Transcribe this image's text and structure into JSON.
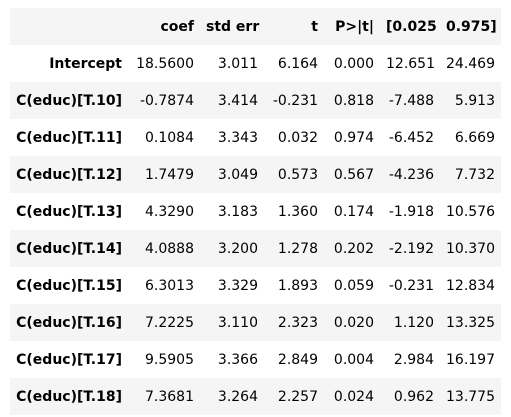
{
  "table": {
    "columns": [
      "coef",
      "std err",
      "t",
      "P>|t|",
      "[0.025",
      "0.975]"
    ],
    "rows": [
      {
        "label": "Intercept",
        "cells": [
          "18.5600",
          "3.011",
          "6.164",
          "0.000",
          "12.651",
          "24.469"
        ]
      },
      {
        "label": "C(educ)[T.10]",
        "cells": [
          "-0.7874",
          "3.414",
          "-0.231",
          "0.818",
          "-7.488",
          "5.913"
        ]
      },
      {
        "label": "C(educ)[T.11]",
        "cells": [
          "0.1084",
          "3.343",
          "0.032",
          "0.974",
          "-6.452",
          "6.669"
        ]
      },
      {
        "label": "C(educ)[T.12]",
        "cells": [
          "1.7479",
          "3.049",
          "0.573",
          "0.567",
          "-4.236",
          "7.732"
        ]
      },
      {
        "label": "C(educ)[T.13]",
        "cells": [
          "4.3290",
          "3.183",
          "1.360",
          "0.174",
          "-1.918",
          "10.576"
        ]
      },
      {
        "label": "C(educ)[T.14]",
        "cells": [
          "4.0888",
          "3.200",
          "1.278",
          "0.202",
          "-2.192",
          "10.370"
        ]
      },
      {
        "label": "C(educ)[T.15]",
        "cells": [
          "6.3013",
          "3.329",
          "1.893",
          "0.059",
          "-0.231",
          "12.834"
        ]
      },
      {
        "label": "C(educ)[T.16]",
        "cells": [
          "7.2225",
          "3.110",
          "2.323",
          "0.020",
          "1.120",
          "13.325"
        ]
      },
      {
        "label": "C(educ)[T.17]",
        "cells": [
          "9.5905",
          "3.366",
          "2.849",
          "0.004",
          "2.984",
          "16.197"
        ]
      },
      {
        "label": "C(educ)[T.18]",
        "cells": [
          "7.3681",
          "3.264",
          "2.257",
          "0.024",
          "0.962",
          "13.775"
        ]
      }
    ]
  }
}
